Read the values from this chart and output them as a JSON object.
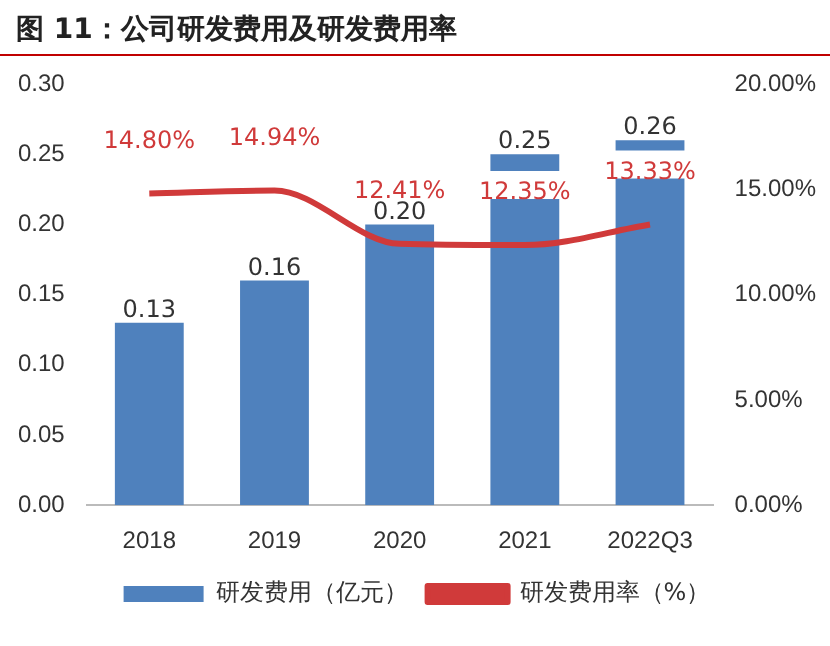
{
  "chart_data": {
    "type": "bar",
    "title": "图 11：公司研发费用及研发费用率",
    "categories": [
      "2018",
      "2019",
      "2020",
      "2021",
      "2022Q3"
    ],
    "series": [
      {
        "name": "研发费用（亿元）",
        "color": "#4f81bd",
        "values": [
          0.13,
          0.16,
          0.2,
          0.25,
          0.26
        ],
        "value_labels": [
          "0.13",
          "0.16",
          "0.20",
          "0.25",
          "0.26"
        ]
      },
      {
        "name": "研发费用率（%）",
        "type": "line",
        "axis": "y2",
        "color": "#d03a3a",
        "values": [
          14.8,
          14.94,
          12.41,
          12.35,
          13.33
        ],
        "value_labels": [
          "14.80%",
          "14.94%",
          "12.41%",
          "12.35%",
          "13.33%"
        ]
      }
    ],
    "ylim": [
      0,
      0.3
    ],
    "yticks": [
      {
        "value": 0,
        "label": "0.00"
      },
      {
        "value": 0.05,
        "label": "0.05"
      },
      {
        "value": 0.1,
        "label": "0.10"
      },
      {
        "value": 0.15,
        "label": "0.15"
      },
      {
        "value": 0.2,
        "label": "0.20"
      },
      {
        "value": 0.25,
        "label": "0.25"
      },
      {
        "value": 0.3,
        "label": "0.30"
      }
    ],
    "y2lim": [
      0,
      20
    ],
    "y2ticks": [
      {
        "value": 0,
        "label": "0.00%"
      },
      {
        "value": 5,
        "label": "5.00%"
      },
      {
        "value": 10,
        "label": "10.00%"
      },
      {
        "value": 15,
        "label": "15.00%"
      },
      {
        "value": 20,
        "label": "20.00%"
      }
    ],
    "legend": "bottom",
    "marker": "none",
    "line_style": "solid"
  }
}
